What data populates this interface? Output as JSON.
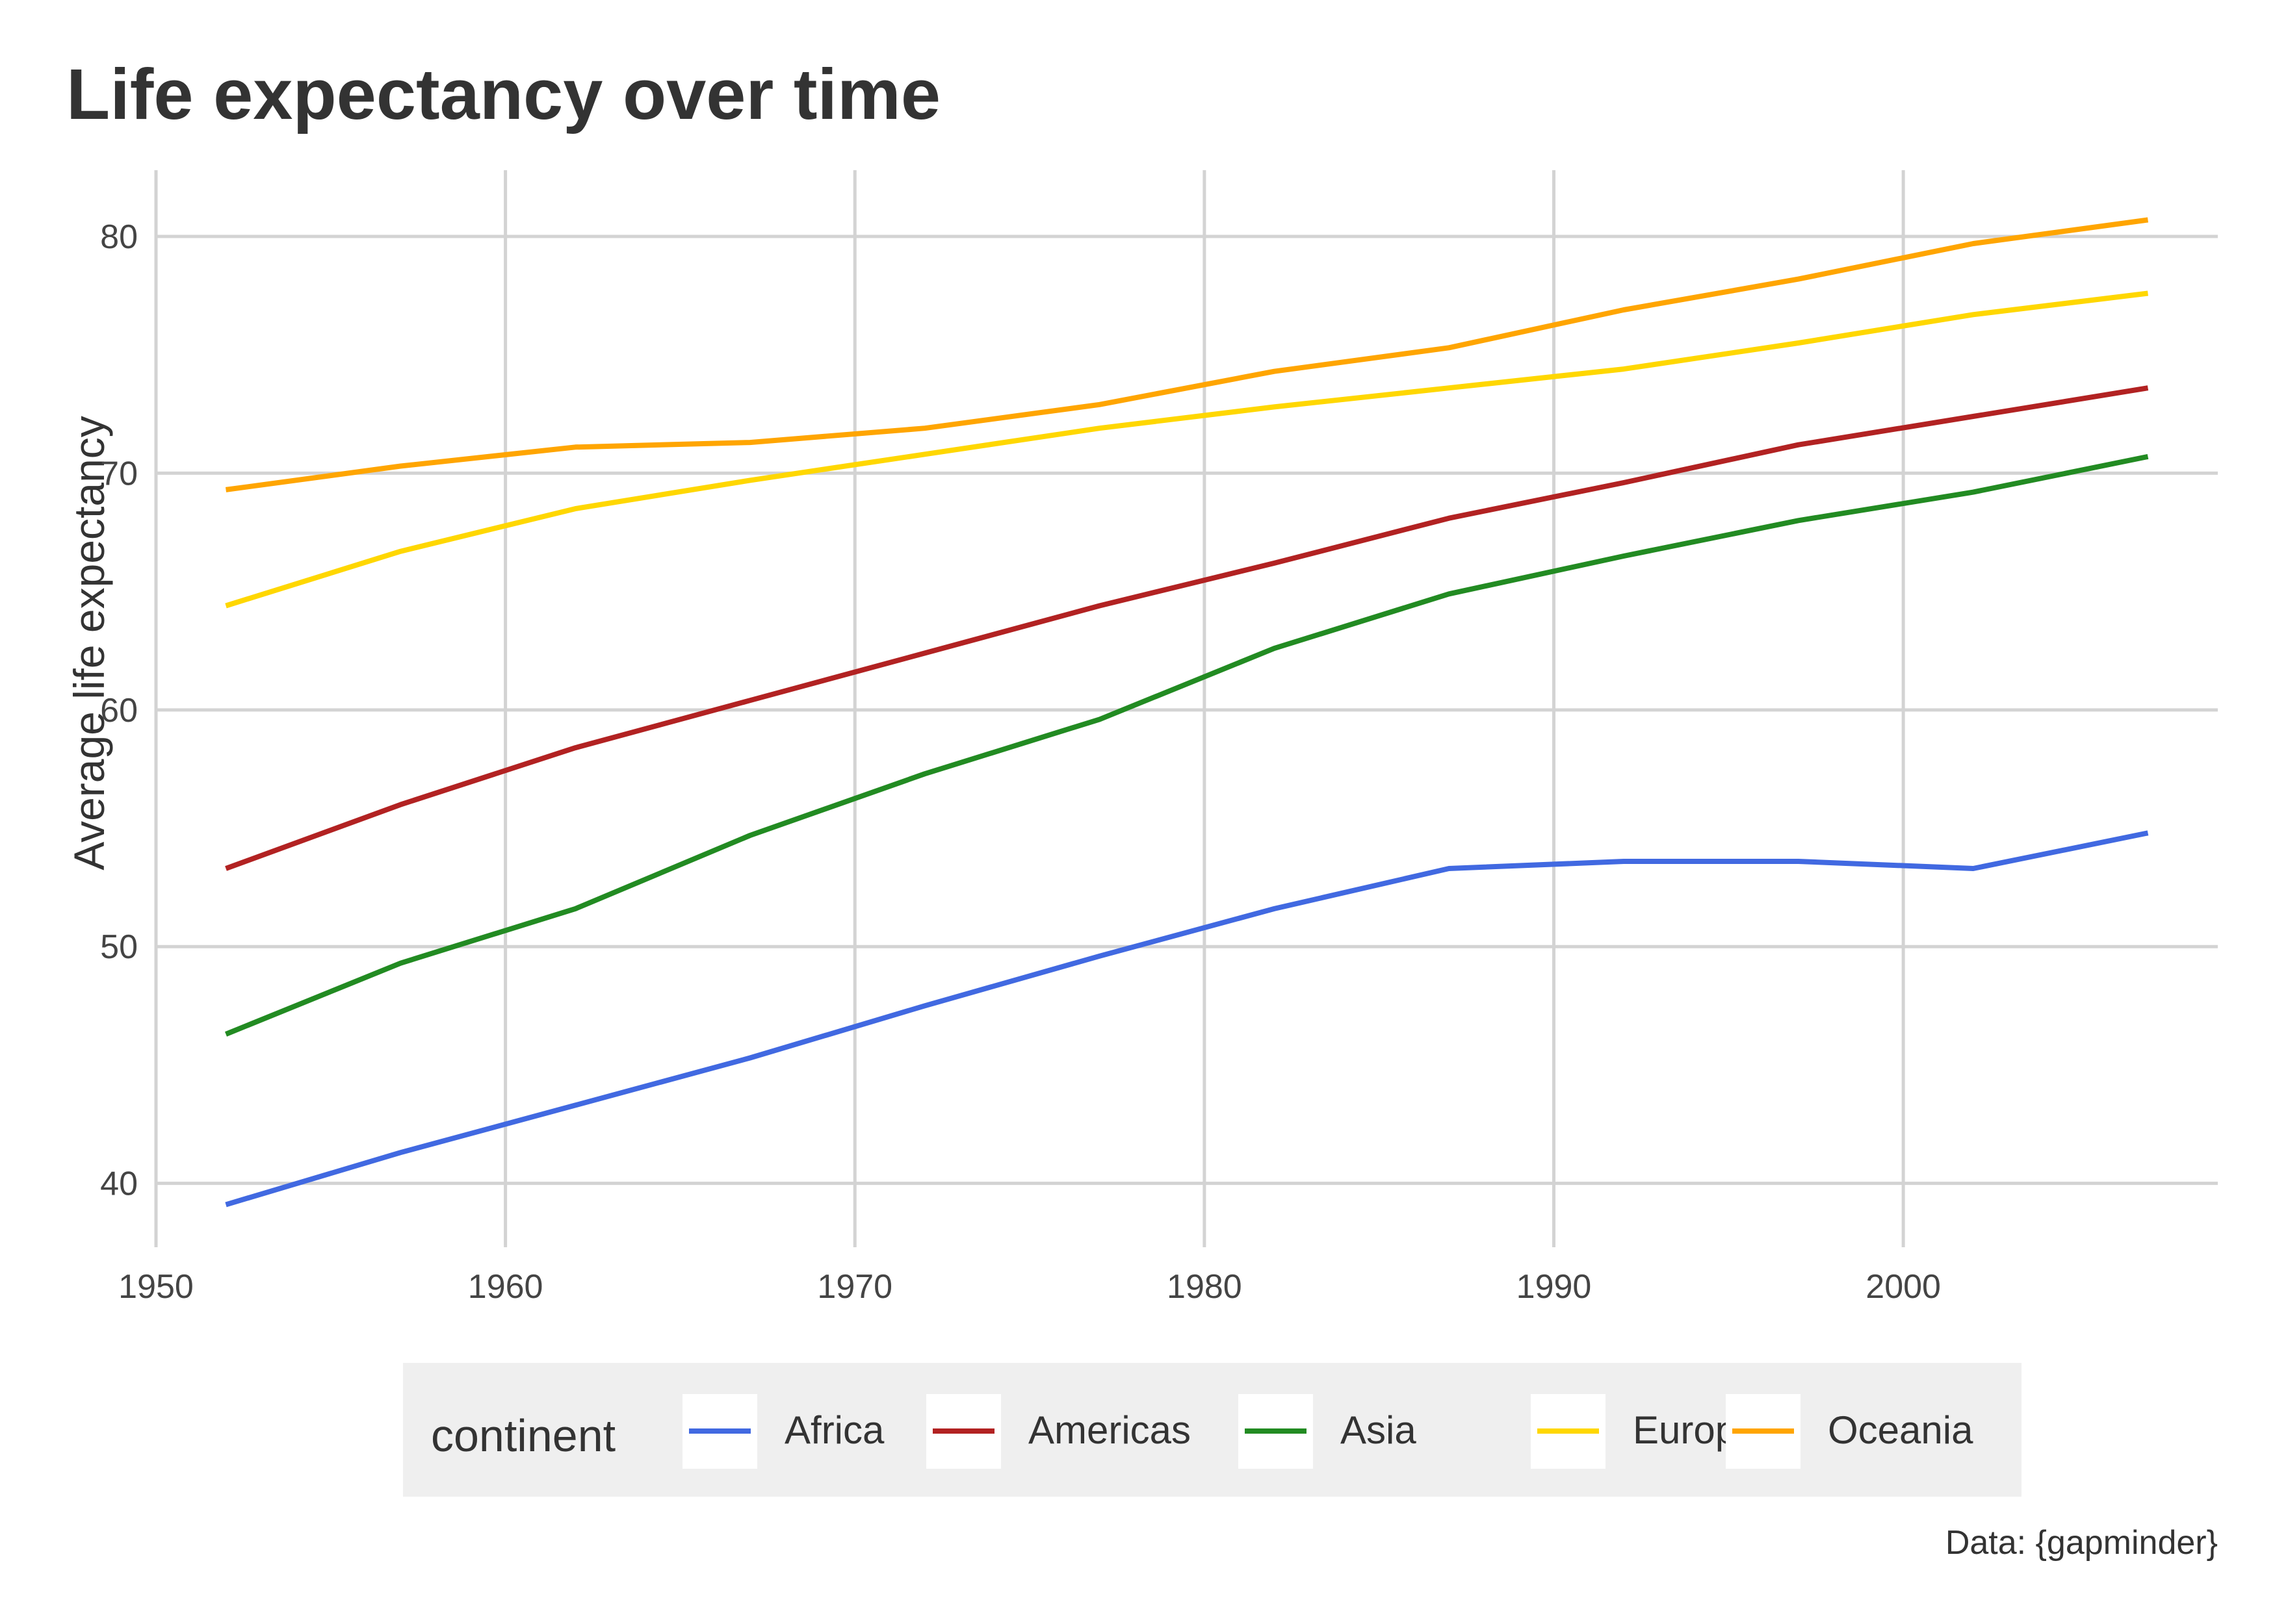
{
  "chart_data": {
    "type": "line",
    "title": "Life expectancy over time",
    "xlabel": "",
    "ylabel": "Average life expectancy",
    "caption": "Data: {gapminder}",
    "x": [
      1952,
      1957,
      1962,
      1967,
      1972,
      1977,
      1982,
      1987,
      1992,
      1997,
      2002,
      2007
    ],
    "xlim": [
      1950,
      2009
    ],
    "ylim": [
      37.3,
      82.8
    ],
    "x_ticks": [
      1950,
      1960,
      1970,
      1980,
      1990,
      2000
    ],
    "y_ticks": [
      40,
      50,
      60,
      70,
      80
    ],
    "grid": true,
    "legend": {
      "title": "continent",
      "position": "bottom",
      "background": "#efefef"
    },
    "series": [
      {
        "name": "Africa",
        "color": "#4169e1",
        "values": [
          39.1,
          41.3,
          43.3,
          45.3,
          47.5,
          49.6,
          51.6,
          53.3,
          53.6,
          53.6,
          53.3,
          54.8
        ]
      },
      {
        "name": "Americas",
        "color": "#b22222",
        "values": [
          53.3,
          56.0,
          58.4,
          60.4,
          62.4,
          64.4,
          66.2,
          68.1,
          69.6,
          71.2,
          72.4,
          73.6
        ]
      },
      {
        "name": "Asia",
        "color": "#228b22",
        "values": [
          46.3,
          49.3,
          51.6,
          54.7,
          57.3,
          59.6,
          62.6,
          64.9,
          66.5,
          68.0,
          69.2,
          70.7
        ]
      },
      {
        "name": "Europe",
        "color": "#ffd700",
        "values": [
          64.4,
          66.7,
          68.5,
          69.7,
          70.8,
          71.9,
          72.8,
          73.6,
          74.4,
          75.5,
          76.7,
          77.6
        ]
      },
      {
        "name": "Oceania",
        "color": "#ffa500",
        "values": [
          69.3,
          70.3,
          71.1,
          71.3,
          71.9,
          72.9,
          74.3,
          75.3,
          76.9,
          78.2,
          79.7,
          80.7
        ]
      }
    ]
  }
}
